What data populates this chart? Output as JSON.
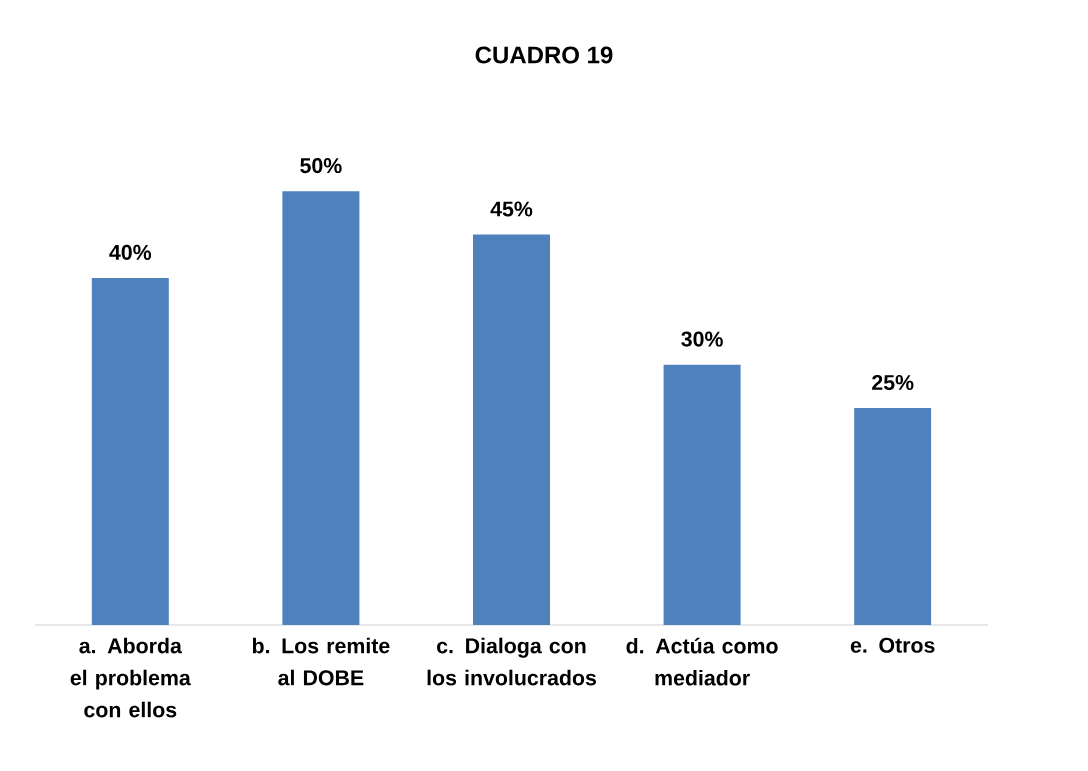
{
  "chart_data": {
    "type": "bar",
    "title": "CUADRO 19",
    "categories": [
      "a.  Aborda el problema con ellos",
      "b.  Los remite al DOBE",
      "c.  Dialoga con los involucrados",
      "d.  Actúa como mediador",
      "e.  Otros"
    ],
    "values": [
      40,
      50,
      45,
      30,
      25
    ],
    "value_labels": [
      "40%",
      "50%",
      "45%",
      "30%",
      "25%"
    ],
    "color": "#4f81bd"
  }
}
